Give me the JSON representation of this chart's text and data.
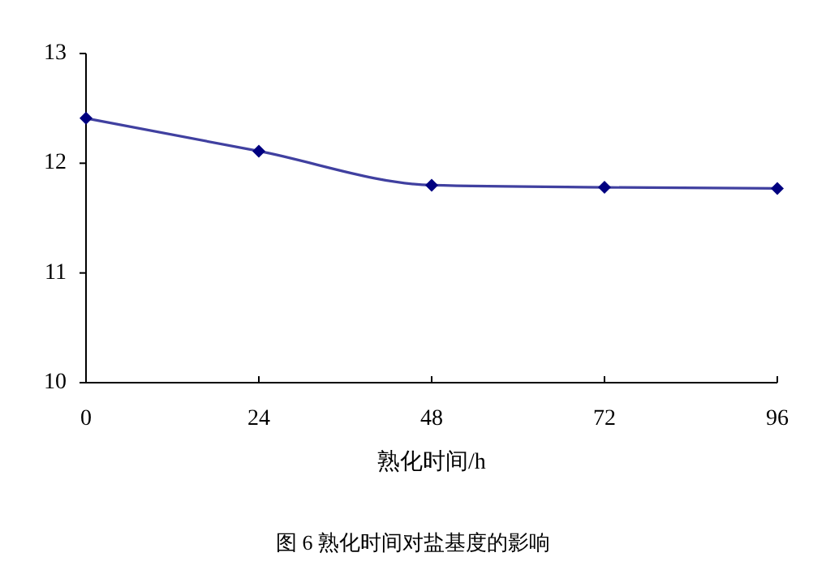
{
  "chart_data": {
    "type": "line",
    "xlabel": "熟化时间/h",
    "annotations": [
      "图 6 熟化时间对盐基度的影响"
    ],
    "x": [
      0,
      24,
      48,
      72,
      96
    ],
    "series": [
      {
        "color": "#000080",
        "values": [
          12.41,
          12.11,
          11.8,
          11.78,
          11.77
        ]
      }
    ],
    "xlim": [
      0,
      96
    ],
    "xticks": [
      0,
      24,
      48,
      72,
      96
    ],
    "ylim": [
      10,
      13
    ],
    "yticks": [
      10,
      11,
      12,
      13
    ],
    "grid": false,
    "marker": "diamond",
    "line_style": "solid"
  }
}
